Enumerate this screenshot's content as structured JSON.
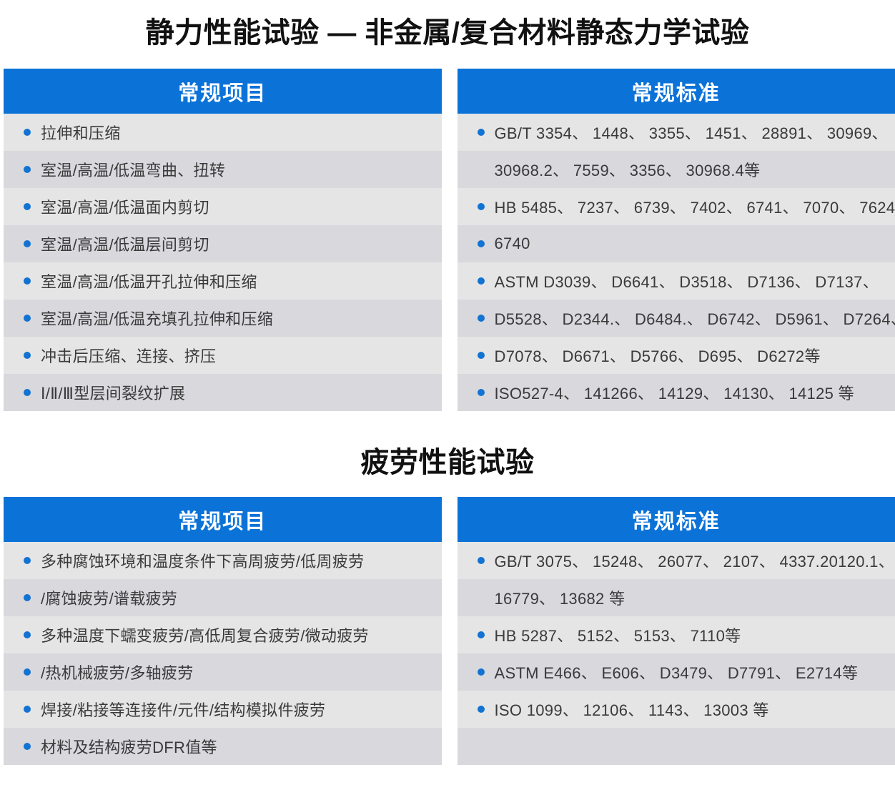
{
  "page": {
    "accent_blue": "#0b72d8",
    "row_light": "#e5e5e5",
    "row_dark": "#d8d8dd",
    "bullet_color": "#1273d2",
    "title_color": "#111111",
    "text_color": "#3a3a3a"
  },
  "sections": [
    {
      "title": "静力性能试验 — 非金属/复合材料静态力学试验",
      "columns": [
        {
          "header": "常规项目",
          "rows": [
            {
              "bullet": true,
              "text": "拉伸和压缩"
            },
            {
              "bullet": true,
              "text": "室温/高温/低温弯曲、扭转"
            },
            {
              "bullet": true,
              "text": "室温/高温/低温面内剪切"
            },
            {
              "bullet": true,
              "text": "室温/高温/低温层间剪切"
            },
            {
              "bullet": true,
              "text": "室温/高温/低温开孔拉伸和压缩"
            },
            {
              "bullet": true,
              "text": "室温/高温/低温充填孔拉伸和压缩"
            },
            {
              "bullet": true,
              "text": "冲击后压缩、连接、挤压"
            },
            {
              "bullet": true,
              "text": "Ⅰ/Ⅱ/Ⅲ型层间裂纹扩展"
            }
          ]
        },
        {
          "header": "常规标准",
          "rows": [
            {
              "bullet": true,
              "text": "GB/T 3354、 1448、 3355、 1451、 28891、 30969、"
            },
            {
              "bullet": false,
              "text": "30968.2、 7559、 3356、 30968.4等"
            },
            {
              "bullet": true,
              "text": "HB 5485、 7237、 6739、 7402、 6741、 7070、 7624、"
            },
            {
              "bullet": true,
              "text": "6740"
            },
            {
              "bullet": true,
              "text": "ASTM D3039、 D6641、 D3518、 D7136、 D7137、"
            },
            {
              "bullet": true,
              "text": "D5528、 D2344.、 D6484.、 D6742、 D5961、 D7264、"
            },
            {
              "bullet": true,
              "text": "D7078、 D6671、 D5766、 D695、 D6272等"
            },
            {
              "bullet": true,
              "text": "ISO527-4、 141266、 14129、 14130、 14125 等"
            }
          ]
        }
      ]
    },
    {
      "title": "疲劳性能试验",
      "columns": [
        {
          "header": "常规项目",
          "rows": [
            {
              "bullet": true,
              "text": "多种腐蚀环境和温度条件下高周疲劳/低周疲劳"
            },
            {
              "bullet": true,
              "text": "/腐蚀疲劳/谱载疲劳"
            },
            {
              "bullet": true,
              "text": "多种温度下蠕变疲劳/高低周复合疲劳/微动疲劳"
            },
            {
              "bullet": true,
              "text": "/热机械疲劳/多轴疲劳"
            },
            {
              "bullet": true,
              "text": "焊接/粘接等连接件/元件/结构模拟件疲劳"
            },
            {
              "bullet": true,
              "text": "材料及结构疲劳DFR值等"
            }
          ]
        },
        {
          "header": "常规标准",
          "rows": [
            {
              "bullet": true,
              "text": "GB/T 3075、 15248、 26077、 2107、 4337.20120.1、"
            },
            {
              "bullet": false,
              "text": "16779、 13682 等"
            },
            {
              "bullet": true,
              "text": "HB 5287、 5152、 5153、 7110等"
            },
            {
              "bullet": true,
              "text": "ASTM E466、 E606、 D3479、 D7791、 E2714等"
            },
            {
              "bullet": true,
              "text": "ISO 1099、 12106、 1143、 13003 等"
            },
            {
              "bullet": false,
              "text": ""
            }
          ]
        }
      ]
    }
  ]
}
